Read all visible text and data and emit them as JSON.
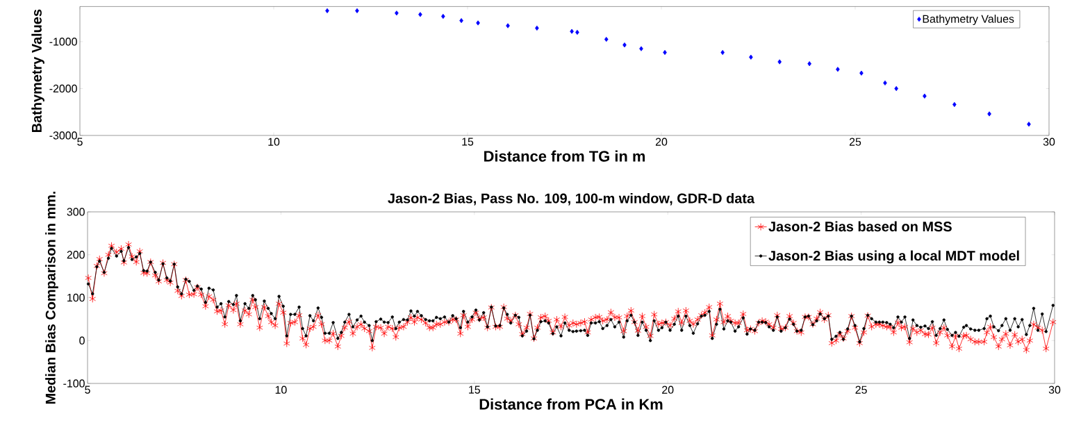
{
  "chart_data": [
    {
      "type": "scatter",
      "xlabel": "Distance from TG in m",
      "ylabel": "Bathymetry Values",
      "marker": "diamond",
      "legend": "top right",
      "xlim": [
        5,
        30
      ],
      "xticks": [
        5,
        10,
        15,
        20,
        25,
        30
      ],
      "ylim": [
        -3000,
        -250
      ],
      "yticks": [
        -3000,
        -2000,
        -1000
      ],
      "x": [
        11.38,
        12.15,
        13.17,
        13.78,
        14.37,
        14.84,
        15.27,
        16.04,
        16.79,
        17.69,
        17.83,
        18.58,
        19.05,
        19.48,
        20.09,
        21.58,
        22.31,
        23.05,
        23.82,
        24.55,
        25.16,
        25.77,
        26.06,
        26.79,
        27.56,
        28.46,
        29.48
      ],
      "series": [
        {
          "name": "Bathymetry Values",
          "color": "#0000ff",
          "values": [
            -340,
            -340,
            -390,
            -420,
            -460,
            -550,
            -600,
            -660,
            -710,
            -780,
            -800,
            -950,
            -1070,
            -1150,
            -1230,
            -1230,
            -1330,
            -1430,
            -1470,
            -1590,
            -1670,
            -1880,
            -2000,
            -2160,
            -2340,
            -2540,
            -2760
          ]
        }
      ]
    },
    {
      "type": "line",
      "title": "Jason-2 Bias, Pass No. 109,  100-m window, GDR-D data",
      "xlabel": "Distance from PCA in Km",
      "ylabel": "Median Bias Comparison in mm.",
      "legend": "top right",
      "line_style": "solid",
      "xlim": [
        5,
        30
      ],
      "xticks": [
        5,
        10,
        15,
        20,
        25,
        30
      ],
      "ylim": [
        -100,
        300
      ],
      "yticks": [
        -100,
        0,
        100,
        200,
        300
      ],
      "x": [
        5.02,
        5.13,
        5.24,
        5.31,
        5.43,
        5.54,
        5.62,
        5.75,
        5.87,
        5.94,
        6.06,
        6.15,
        6.26,
        6.35,
        6.45,
        6.54,
        6.63,
        6.75,
        6.84,
        6.95,
        7.05,
        7.14,
        7.24,
        7.33,
        7.43,
        7.54,
        7.63,
        7.75,
        7.84,
        7.94,
        8.05,
        8.14,
        8.25,
        8.35,
        8.45,
        8.55,
        8.65,
        8.77,
        8.85,
        8.95,
        9.07,
        9.17,
        9.27,
        9.34,
        9.45,
        9.57,
        9.67,
        9.75,
        9.85,
        9.95,
        10.06,
        10.15,
        10.25,
        10.36,
        10.47,
        10.56,
        10.65,
        10.75,
        10.84,
        10.96,
        11.05,
        11.14,
        11.25,
        11.35,
        11.47,
        11.56,
        11.65,
        11.76,
        11.86,
        11.97,
        12.07,
        12.16,
        12.28,
        12.36,
        12.46,
        12.58,
        12.67,
        12.77,
        12.88,
        12.97,
        13.06,
        13.17,
        13.27,
        13.36,
        13.45,
        13.53,
        13.63,
        13.74,
        13.84,
        13.93,
        14.02,
        14.12,
        14.23,
        14.34,
        14.44,
        14.53,
        14.64,
        14.72,
        14.83,
        14.94,
        15.04,
        15.13,
        15.24,
        15.34,
        15.44,
        15.55,
        15.66,
        15.76,
        15.85,
        15.94,
        16.06,
        16.15,
        16.24,
        16.35,
        16.44,
        16.54,
        16.63,
        16.72,
        16.83,
        16.92,
        17.03,
        17.13,
        17.24,
        17.34,
        17.45,
        17.55,
        17.64,
        17.75,
        17.85,
        17.93,
        18.02,
        18.13,
        18.23,
        18.32,
        18.43,
        18.53,
        18.63,
        18.74,
        18.86,
        18.95,
        19.05,
        19.14,
        19.23,
        19.34,
        19.44,
        19.55,
        19.65,
        19.76,
        19.85,
        19.95,
        20.06,
        20.17,
        20.27,
        20.36,
        20.47,
        20.57,
        20.66,
        20.77,
        20.87,
        20.96,
        21.07,
        21.15,
        21.26,
        21.35,
        21.45,
        21.55,
        21.63,
        21.74,
        21.83,
        21.95,
        22.05,
        22.14,
        22.25,
        22.35,
        22.44,
        22.53,
        22.62,
        22.73,
        22.83,
        22.93,
        23.04,
        23.15,
        23.25,
        23.34,
        23.45,
        23.55,
        23.64,
        23.75,
        23.85,
        23.94,
        24.05,
        24.15,
        24.24,
        24.35,
        24.45,
        24.54,
        24.65,
        24.75,
        24.84,
        24.96,
        25.07,
        25.17,
        25.27,
        25.38,
        25.47,
        25.56,
        25.66,
        25.75,
        25.84,
        25.95,
        26.04,
        26.13,
        26.25,
        26.34,
        26.44,
        26.54,
        26.65,
        26.74,
        26.84,
        26.94,
        27.04,
        27.14,
        27.23,
        27.35,
        27.44,
        27.53,
        27.65,
        27.72,
        27.83,
        27.94,
        28.04,
        28.18,
        28.25,
        28.34,
        28.43,
        28.55,
        28.64,
        28.74,
        28.85,
        28.97,
        29.06,
        29.16,
        29.27,
        29.36,
        29.46,
        29.57,
        29.68,
        29.78,
        29.96
      ],
      "series": [
        {
          "name": "Jason-2  Bias based on MSS",
          "color": "#ff0000",
          "marker": "cross",
          "values": [
            146,
            97,
            174,
            190,
            157,
            200,
            221,
            206,
            214,
            182,
            224,
            196,
            183,
            208,
            158,
            157,
            183,
            152,
            138,
            181,
            141,
            135,
            178,
            116,
            104,
            141,
            107,
            108,
            124,
            107,
            80,
            103,
            95,
            68,
            70,
            38,
            82,
            71,
            86,
            38,
            70,
            61,
            95,
            78,
            30,
            78,
            57,
            43,
            35,
            86,
            65,
            -7,
            41,
            43,
            59,
            5,
            -10,
            28,
            32,
            59,
            38,
            0,
            0,
            17,
            -14,
            11,
            30,
            44,
            16,
            32,
            38,
            28,
            22,
            -17,
            32,
            30,
            16,
            32,
            28,
            8,
            30,
            32,
            43,
            54,
            43,
            54,
            49,
            41,
            30,
            30,
            38,
            38,
            43,
            43,
            49,
            49,
            16,
            59,
            32,
            49,
            65,
            51,
            54,
            30,
            77,
            32,
            32,
            78,
            51,
            46,
            59,
            38,
            15,
            30,
            62,
            5,
            30,
            54,
            57,
            46,
            19,
            49,
            32,
            55,
            35,
            41,
            38,
            41,
            44,
            19,
            49,
            54,
            55,
            46,
            49,
            66,
            54,
            54,
            22,
            57,
            70,
            43,
            23,
            57,
            32,
            11,
            61,
            38,
            41,
            43,
            35,
            51,
            68,
            41,
            70,
            46,
            38,
            49,
            59,
            65,
            78,
            12,
            49,
            86,
            43,
            57,
            46,
            41,
            41,
            62,
            24,
            27,
            22,
            41,
            46,
            44,
            38,
            30,
            59,
            27,
            30,
            57,
            41,
            22,
            19,
            55,
            55,
            38,
            51,
            66,
            49,
            59,
            -6,
            0,
            15,
            5,
            22,
            57,
            30,
            -6,
            19,
            58,
            32,
            38,
            38,
            35,
            32,
            32,
            19,
            42,
            30,
            32,
            -4,
            28,
            19,
            24,
            15,
            14,
            30,
            -6,
            19,
            30,
            12,
            -14,
            11,
            -19,
            11,
            12,
            3,
            -3,
            -3,
            -3,
            19,
            32,
            8,
            -14,
            3,
            16,
            -11,
            14,
            -3,
            3,
            -22,
            0,
            38,
            30,
            24,
            -19,
            43
          ]
        },
        {
          "name": "Jason-2  Bias using a local MDT model",
          "color": "#000000",
          "marker": "circle",
          "values": [
            132,
            109,
            172,
            185,
            159,
            192,
            215,
            197,
            208,
            186,
            217,
            189,
            195,
            203,
            163,
            162,
            183,
            159,
            141,
            179,
            146,
            139,
            178,
            125,
            109,
            143,
            138,
            117,
            127,
            120,
            89,
            122,
            118,
            78,
            86,
            55,
            91,
            84,
            105,
            46,
            86,
            75,
            105,
            95,
            51,
            92,
            75,
            63,
            51,
            103,
            80,
            11,
            61,
            61,
            78,
            28,
            11,
            58,
            46,
            76,
            54,
            17,
            17,
            42,
            5,
            19,
            43,
            61,
            32,
            48,
            57,
            43,
            35,
            0,
            44,
            50,
            43,
            42,
            55,
            28,
            43,
            49,
            48,
            69,
            57,
            68,
            58,
            49,
            46,
            46,
            54,
            51,
            55,
            43,
            58,
            51,
            30,
            68,
            43,
            55,
            71,
            48,
            65,
            32,
            78,
            34,
            35,
            76,
            61,
            41,
            59,
            54,
            11,
            22,
            59,
            4,
            24,
            44,
            46,
            41,
            16,
            32,
            11,
            41,
            24,
            21,
            22,
            23,
            24,
            12,
            41,
            41,
            44,
            28,
            35,
            49,
            32,
            43,
            8,
            46,
            59,
            43,
            12,
            43,
            24,
            0,
            46,
            24,
            30,
            43,
            24,
            38,
            57,
            24,
            57,
            35,
            17,
            39,
            57,
            59,
            68,
            5,
            38,
            73,
            27,
            46,
            43,
            22,
            32,
            53,
            15,
            27,
            24,
            43,
            43,
            42,
            32,
            24,
            55,
            22,
            30,
            50,
            38,
            22,
            24,
            55,
            57,
            37,
            46,
            62,
            51,
            57,
            3,
            10,
            19,
            3,
            27,
            57,
            35,
            -3,
            28,
            59,
            51,
            43,
            43,
            43,
            42,
            38,
            30,
            55,
            43,
            55,
            5,
            48,
            35,
            31,
            34,
            28,
            44,
            12,
            28,
            48,
            26,
            12,
            19,
            10,
            31,
            35,
            27,
            24,
            24,
            28,
            51,
            57,
            32,
            23,
            35,
            51,
            24,
            51,
            32,
            49,
            14,
            35,
            75,
            24,
            62,
            21,
            82
          ]
        }
      ]
    }
  ]
}
